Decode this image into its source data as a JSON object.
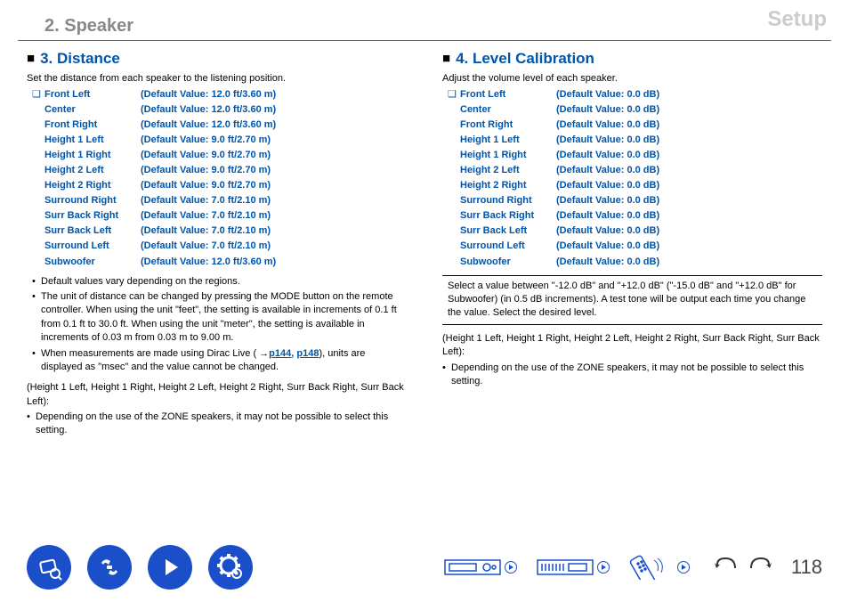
{
  "header": {
    "left": "2. Speaker",
    "right": "Setup"
  },
  "section3": {
    "title": "3. Distance",
    "desc": "Set the distance from each speaker to the listening position.",
    "rows": [
      {
        "check": "❏",
        "name": "Front Left",
        "val": "(Default Value: 12.0 ft/3.60 m)"
      },
      {
        "check": "",
        "name": "Center",
        "val": "(Default Value: 12.0 ft/3.60 m)"
      },
      {
        "check": "",
        "name": "Front Right",
        "val": "(Default Value: 12.0 ft/3.60 m)"
      },
      {
        "check": "",
        "name": "Height 1 Left",
        "val": "(Default Value: 9.0 ft/2.70 m)"
      },
      {
        "check": "",
        "name": "Height 1 Right",
        "val": "(Default Value: 9.0 ft/2.70 m)"
      },
      {
        "check": "",
        "name": "Height 2 Left",
        "val": "(Default Value: 9.0 ft/2.70 m)"
      },
      {
        "check": "",
        "name": "Height 2 Right",
        "val": "(Default Value: 9.0 ft/2.70 m)"
      },
      {
        "check": "",
        "name": "Surround Right",
        "val": "(Default Value: 7.0 ft/2.10 m)"
      },
      {
        "check": "",
        "name": "Surr Back Right",
        "val": "(Default Value: 7.0 ft/2.10 m)"
      },
      {
        "check": "",
        "name": "Surr Back Left",
        "val": "(Default Value: 7.0 ft/2.10 m)"
      },
      {
        "check": "",
        "name": "Surround Left",
        "val": "(Default Value: 7.0 ft/2.10 m)"
      },
      {
        "check": "",
        "name": "Subwoofer",
        "val": "(Default Value: 12.0 ft/3.60 m)"
      }
    ],
    "bullet1": "Default values vary depending on the regions.",
    "bullet2": "The unit of distance can be changed by pressing the MODE button on the remote controller. When using the unit \"feet\", the setting is available in increments of 0.1 ft from 0.1 ft to 30.0 ft. When using the unit \"meter\", the setting is available in increments of 0.03 m from 0.03 m to 9.00 m.",
    "bullet3a": "When measurements are made using Dirac Live ( →",
    "link1": "p144,",
    "link2": "p148",
    "bullet3b": "), units are displayed as \"msec\" and the value cannot be changed.",
    "note_head": "(Height 1 Left, Height 1 Right, Height 2 Left, Height 2 Right, Surr Back Right, Surr Back Left):",
    "note_bullet": "Depending on the use of the ZONE speakers, it may not be possible to select this setting."
  },
  "section4": {
    "title": "4. Level Calibration",
    "desc": "Adjust the volume level of each speaker.",
    "rows": [
      {
        "check": "❏",
        "name": "Front Left",
        "val": "(Default Value: 0.0 dB)"
      },
      {
        "check": "",
        "name": "Center",
        "val": "(Default Value: 0.0 dB)"
      },
      {
        "check": "",
        "name": "Front Right",
        "val": "(Default Value: 0.0 dB)"
      },
      {
        "check": "",
        "name": "Height 1 Left",
        "val": "(Default Value: 0.0 dB)"
      },
      {
        "check": "",
        "name": "Height 1 Right",
        "val": "(Default Value: 0.0 dB)"
      },
      {
        "check": "",
        "name": "Height 2 Left",
        "val": "(Default Value: 0.0 dB)"
      },
      {
        "check": "",
        "name": "Height 2 Right",
        "val": "(Default Value: 0.0 dB)"
      },
      {
        "check": "",
        "name": "Surround Right",
        "val": "(Default Value: 0.0 dB)"
      },
      {
        "check": "",
        "name": "Surr Back Right",
        "val": "(Default Value: 0.0 dB)"
      },
      {
        "check": "",
        "name": "Surr Back Left",
        "val": "(Default Value: 0.0 dB)"
      },
      {
        "check": "",
        "name": "Surround Left",
        "val": "(Default Value: 0.0 dB)"
      },
      {
        "check": "",
        "name": "Subwoofer",
        "val": "(Default Value: 0.0 dB)"
      }
    ],
    "boxed": "Select a value between \"-12.0 dB\" and \"+12.0 dB\" (\"-15.0 dB\" and \"+12.0 dB\" for Subwoofer) (in 0.5 dB increments). A test tone will be output each time you change the value. Select the desired level.",
    "note_head": "(Height 1 Left, Height 1 Right, Height 2 Left, Height 2 Right, Surr Back Right, Surr Back Left):",
    "note_bullet": "Depending on the use of the ZONE speakers, it may not be possible to select this setting."
  },
  "footer": {
    "page": "118",
    "colors": {
      "accent": "#1a4fc9"
    }
  }
}
